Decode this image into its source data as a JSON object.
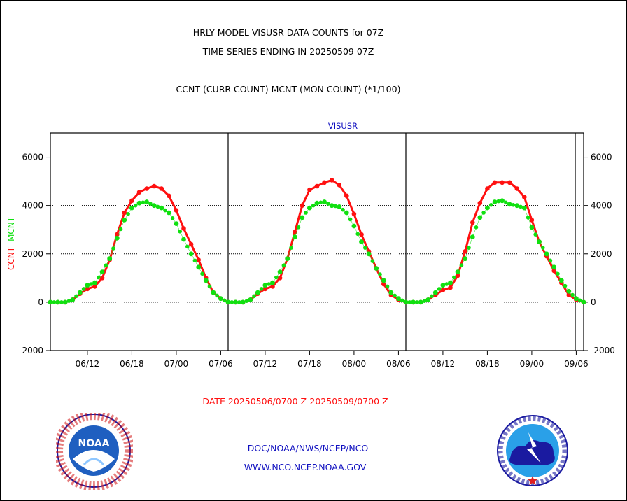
{
  "header": {
    "title_line1": "HRLY MODEL VISUSR DATA COUNTS for 07Z",
    "title_line2": "TIME SERIES ENDING IN 20250509 07Z",
    "subtitle": "CCNT (CURR COUNT) MCNT (MON COUNT) (*1/100)"
  },
  "footer": {
    "date_range": "DATE 20250506/0700 Z-20250509/0700 Z",
    "org_path": "DOC/NOAA/NWS/NCEP/NCO",
    "website": "WWW.NCO.NCEP.NOAA.GOV"
  },
  "logos": {
    "left": {
      "icon": "noaa-logo",
      "text": "NOAA"
    },
    "right": {
      "icon": "nws-logo"
    }
  },
  "colors": {
    "ccnt": "#ff1010",
    "mcnt": "#10e010",
    "text_blue": "#1010c0",
    "date_red": "#ff1010"
  },
  "chart_data": {
    "type": "line",
    "title": "VISUSR",
    "ylabel_left": [
      "CCNT",
      "MCNT"
    ],
    "ylim": [
      -2000,
      7000
    ],
    "yticks": [
      -2000,
      0,
      2000,
      4000,
      6000
    ],
    "x_unit": "hour",
    "xlim": [
      7,
      79
    ],
    "xticks": [
      {
        "x": 12,
        "label": "06/12"
      },
      {
        "x": 18,
        "label": "06/18"
      },
      {
        "x": 24,
        "label": "07/00"
      },
      {
        "x": 30,
        "label": "07/06"
      },
      {
        "x": 36,
        "label": "07/12"
      },
      {
        "x": 42,
        "label": "07/18"
      },
      {
        "x": 48,
        "label": "08/00"
      },
      {
        "x": 54,
        "label": "08/06"
      },
      {
        "x": 60,
        "label": "08/12"
      },
      {
        "x": 66,
        "label": "08/18"
      },
      {
        "x": 72,
        "label": "09/00"
      },
      {
        "x": 78,
        "label": "09/06"
      }
    ],
    "day_dividers": [
      31,
      55,
      79
    ],
    "grid": "horizontal dotted",
    "series": [
      {
        "name": "CCNT",
        "color": "#ff1010",
        "values": [
          0,
          0,
          0,
          100,
          350,
          550,
          650,
          1000,
          1750,
          2800,
          3700,
          4200,
          4550,
          4700,
          4800,
          4700,
          4400,
          3800,
          3050,
          2400,
          1750,
          1000,
          400,
          150,
          0,
          0,
          0,
          100,
          350,
          550,
          650,
          1000,
          1800,
          2900,
          4000,
          4650,
          4800,
          4950,
          5050,
          4850,
          4400,
          3650,
          2800,
          2100,
          1400,
          750,
          300,
          100,
          0,
          0,
          0,
          100,
          300,
          500,
          600,
          1100,
          2100,
          3300,
          4100,
          4700,
          4950,
          4950,
          4950,
          4700,
          4350,
          3400,
          2500,
          1900,
          1300,
          800,
          300,
          100,
          0
        ]
      },
      {
        "name": "MCNT",
        "color": "#10e010",
        "values": [
          0,
          0,
          0,
          100,
          400,
          700,
          800,
          1250,
          1800,
          2650,
          3400,
          3900,
          4100,
          4150,
          4000,
          3900,
          3700,
          3250,
          2600,
          2000,
          1450,
          900,
          400,
          150,
          0,
          0,
          0,
          100,
          400,
          700,
          800,
          1250,
          1800,
          2700,
          3500,
          3900,
          4100,
          4150,
          4000,
          3950,
          3700,
          3150,
          2500,
          2000,
          1400,
          900,
          400,
          150,
          0,
          0,
          0,
          100,
          400,
          700,
          800,
          1250,
          1800,
          2700,
          3500,
          3900,
          4150,
          4200,
          4050,
          4000,
          3900,
          3100,
          2500,
          2000,
          1450,
          900,
          450,
          150,
          0
        ]
      }
    ]
  }
}
